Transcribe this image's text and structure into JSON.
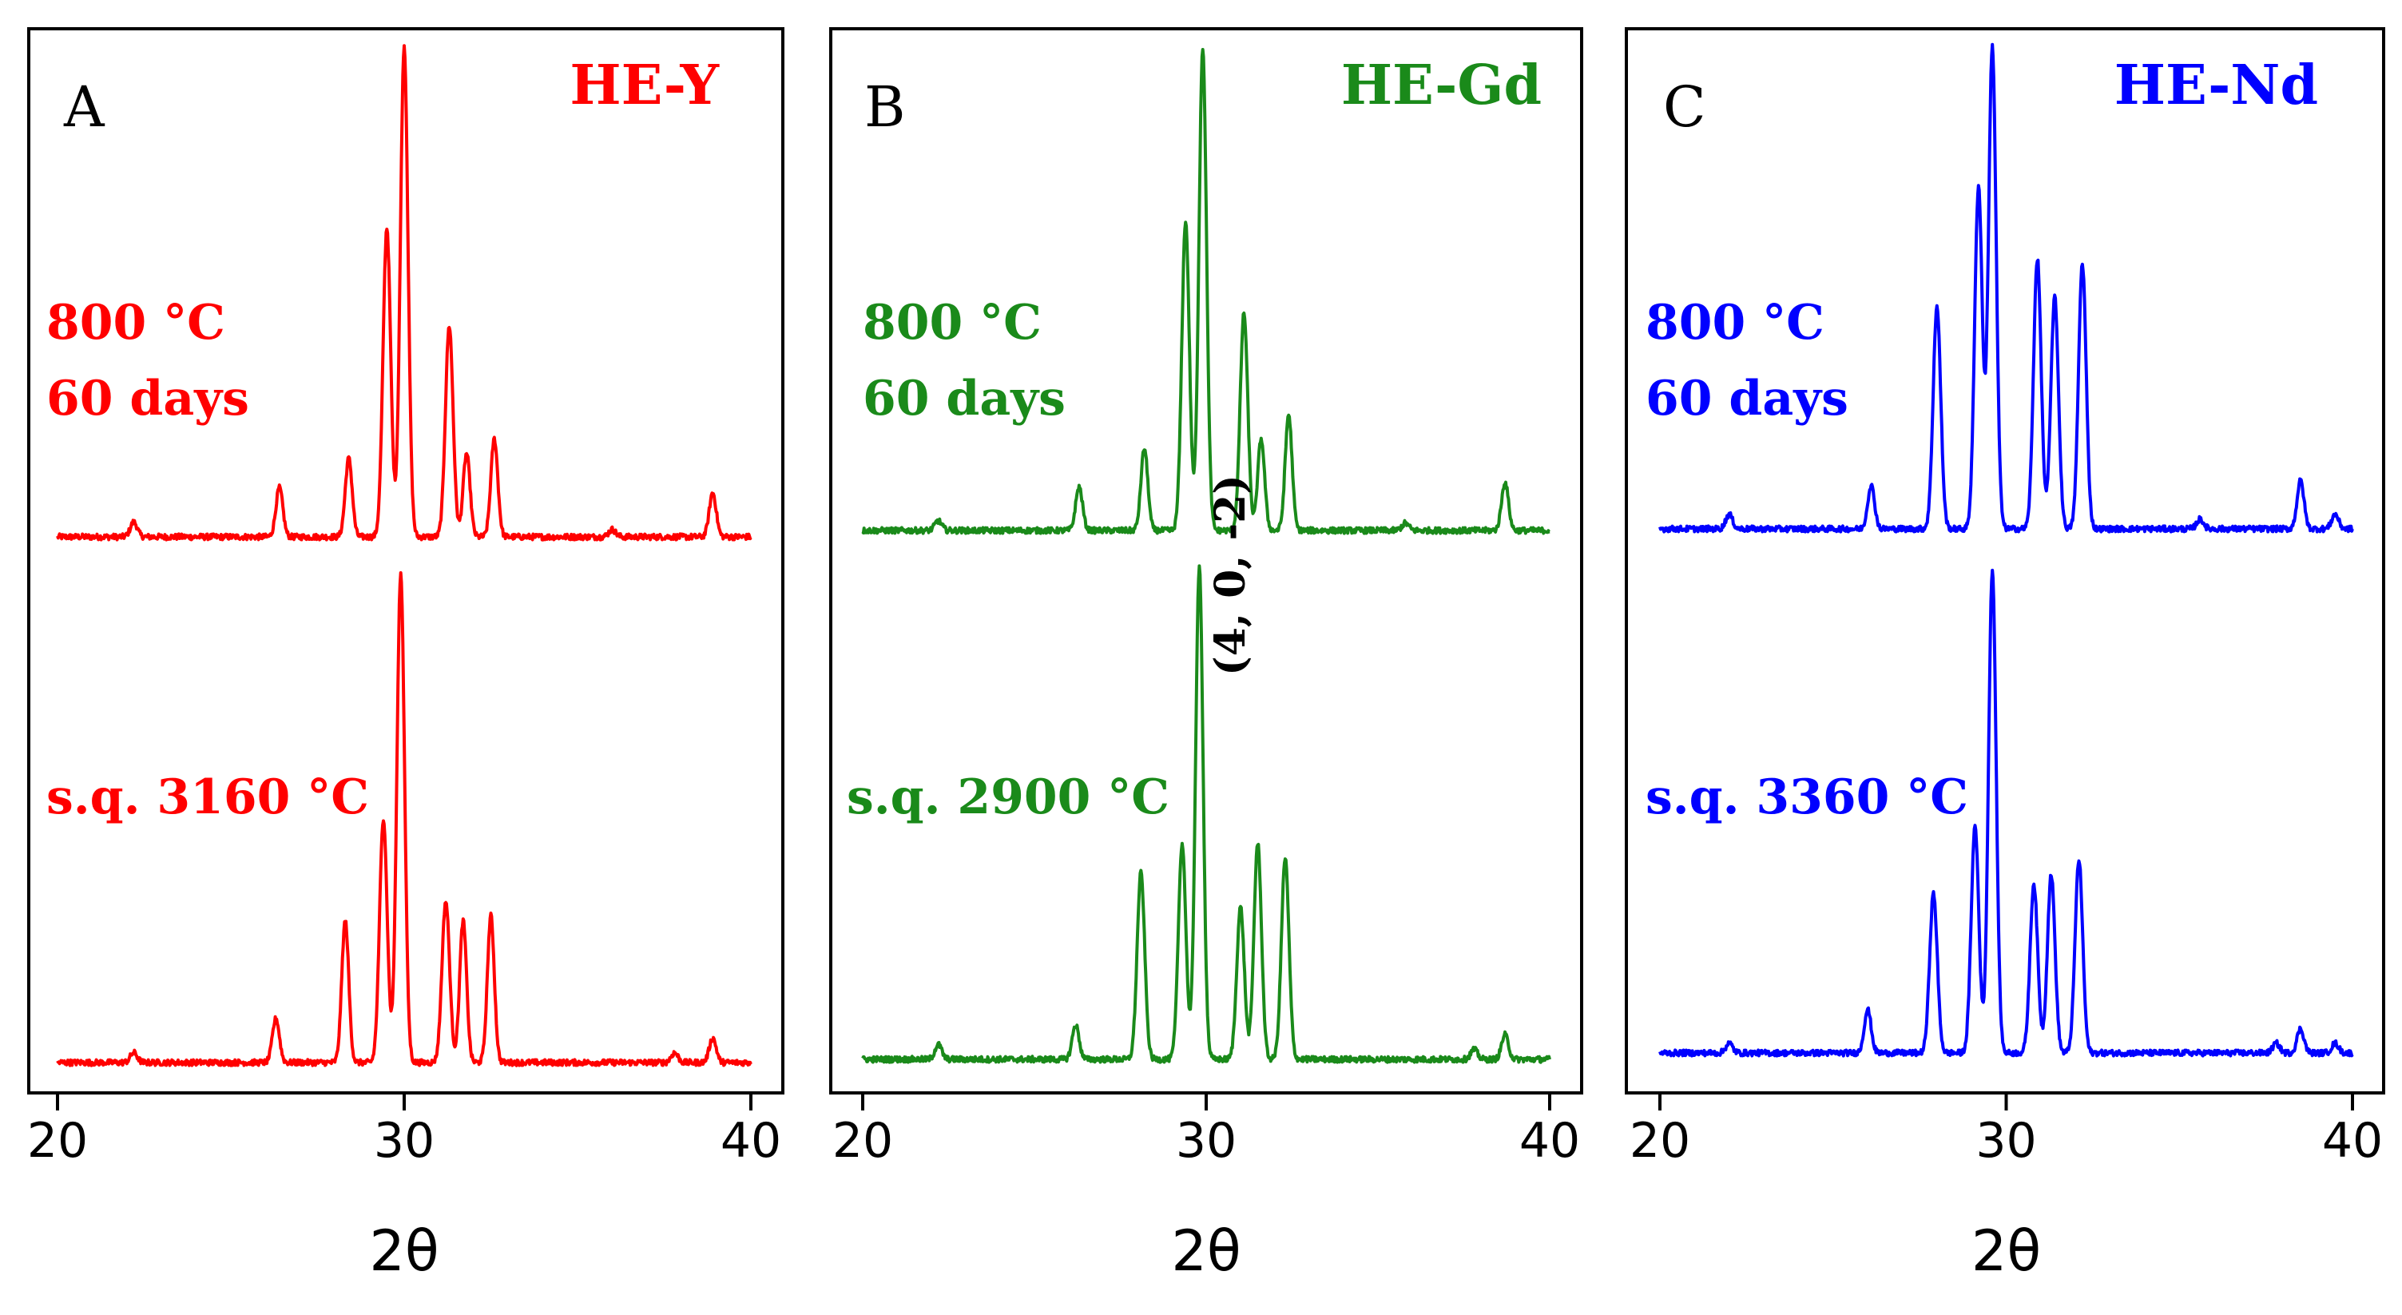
{
  "figure": {
    "xlabel": "2θ",
    "xlim": [
      20,
      40
    ],
    "xticks": [
      20,
      30,
      40
    ]
  },
  "chart_data": [
    {
      "type": "line",
      "panel_letter": "A",
      "title": "HE-Y",
      "color": "#ff0000",
      "xlabel": "2θ",
      "ylabel": "",
      "xlim": [
        20,
        40
      ],
      "x_ticks": [
        20,
        30,
        40
      ],
      "series": [
        {
          "name": "800 °C 60 days",
          "label_lines": [
            "800 °C",
            "60 days"
          ],
          "baseline": 0,
          "peaks": [
            {
              "x": 22.2,
              "y": 0.03
            },
            {
              "x": 26.4,
              "y": 0.1
            },
            {
              "x": 28.4,
              "y": 0.16
            },
            {
              "x": 29.5,
              "y": 0.63
            },
            {
              "x": 30.0,
              "y": 1.0
            },
            {
              "x": 31.3,
              "y": 0.43
            },
            {
              "x": 31.8,
              "y": 0.17
            },
            {
              "x": 32.6,
              "y": 0.2
            },
            {
              "x": 36.0,
              "y": 0.015
            },
            {
              "x": 38.9,
              "y": 0.09
            }
          ]
        },
        {
          "name": "s.q. 3160 °C",
          "label_lines": [
            "s.q. 3160 °C"
          ],
          "baseline": 0,
          "peaks": [
            {
              "x": 22.2,
              "y": 0.02
            },
            {
              "x": 26.3,
              "y": 0.09
            },
            {
              "x": 28.3,
              "y": 0.29
            },
            {
              "x": 29.4,
              "y": 0.5
            },
            {
              "x": 29.9,
              "y": 1.0
            },
            {
              "x": 31.2,
              "y": 0.33
            },
            {
              "x": 31.7,
              "y": 0.29
            },
            {
              "x": 32.5,
              "y": 0.3
            },
            {
              "x": 37.8,
              "y": 0.02
            },
            {
              "x": 38.9,
              "y": 0.05
            }
          ]
        }
      ]
    },
    {
      "type": "line",
      "panel_letter": "B",
      "title": "HE-Gd",
      "color": "#1a8a1a",
      "xlabel": "2θ",
      "ylabel": "",
      "xlim": [
        20,
        40
      ],
      "x_ticks": [
        20,
        30,
        40
      ],
      "annotation": "(4, 0, -2)",
      "series": [
        {
          "name": "800 °C 60 days",
          "label_lines": [
            "800 °C",
            "60 days"
          ],
          "baseline": 0,
          "peaks": [
            {
              "x": 22.2,
              "y": 0.02
            },
            {
              "x": 26.3,
              "y": 0.09
            },
            {
              "x": 28.2,
              "y": 0.17
            },
            {
              "x": 29.4,
              "y": 0.64
            },
            {
              "x": 29.9,
              "y": 1.0
            },
            {
              "x": 31.1,
              "y": 0.45
            },
            {
              "x": 31.6,
              "y": 0.19
            },
            {
              "x": 32.4,
              "y": 0.24
            },
            {
              "x": 35.8,
              "y": 0.015
            },
            {
              "x": 38.7,
              "y": 0.1
            }
          ]
        },
        {
          "name": "s.q. 2900 °C",
          "label_lines": [
            "s.q. 2900 °C"
          ],
          "baseline": 0,
          "peaks": [
            {
              "x": 22.2,
              "y": 0.03
            },
            {
              "x": 26.2,
              "y": 0.07
            },
            {
              "x": 28.1,
              "y": 0.38
            },
            {
              "x": 29.3,
              "y": 0.44
            },
            {
              "x": 29.8,
              "y": 1.0
            },
            {
              "x": 31.0,
              "y": 0.31
            },
            {
              "x": 31.5,
              "y": 0.44
            },
            {
              "x": 32.3,
              "y": 0.41
            },
            {
              "x": 37.8,
              "y": 0.02
            },
            {
              "x": 38.7,
              "y": 0.05
            }
          ]
        }
      ]
    },
    {
      "type": "line",
      "panel_letter": "C",
      "title": "HE-Nd",
      "color": "#0000ff",
      "xlabel": "2θ",
      "ylabel": "",
      "xlim": [
        20,
        40
      ],
      "x_ticks": [
        20,
        30,
        40
      ],
      "series": [
        {
          "name": "800 °C 60 days",
          "label_lines": [
            "800 °C",
            "60 days"
          ],
          "baseline": 0,
          "peaks": [
            {
              "x": 22.0,
              "y": 0.03
            },
            {
              "x": 26.1,
              "y": 0.09
            },
            {
              "x": 28.0,
              "y": 0.46
            },
            {
              "x": 29.2,
              "y": 0.71
            },
            {
              "x": 29.6,
              "y": 1.0
            },
            {
              "x": 30.9,
              "y": 0.56
            },
            {
              "x": 31.4,
              "y": 0.48
            },
            {
              "x": 32.2,
              "y": 0.55
            },
            {
              "x": 35.6,
              "y": 0.02
            },
            {
              "x": 38.5,
              "y": 0.1
            },
            {
              "x": 39.5,
              "y": 0.03
            }
          ]
        },
        {
          "name": "s.q. 3360 °C",
          "label_lines": [
            "s.q. 3360 °C"
          ],
          "baseline": 0,
          "peaks": [
            {
              "x": 22.0,
              "y": 0.02
            },
            {
              "x": 26.0,
              "y": 0.09
            },
            {
              "x": 27.9,
              "y": 0.33
            },
            {
              "x": 29.1,
              "y": 0.47
            },
            {
              "x": 29.6,
              "y": 1.0
            },
            {
              "x": 30.8,
              "y": 0.35
            },
            {
              "x": 31.3,
              "y": 0.37
            },
            {
              "x": 32.1,
              "y": 0.4
            },
            {
              "x": 37.8,
              "y": 0.02
            },
            {
              "x": 38.5,
              "y": 0.05
            },
            {
              "x": 39.5,
              "y": 0.02
            }
          ]
        }
      ]
    }
  ]
}
